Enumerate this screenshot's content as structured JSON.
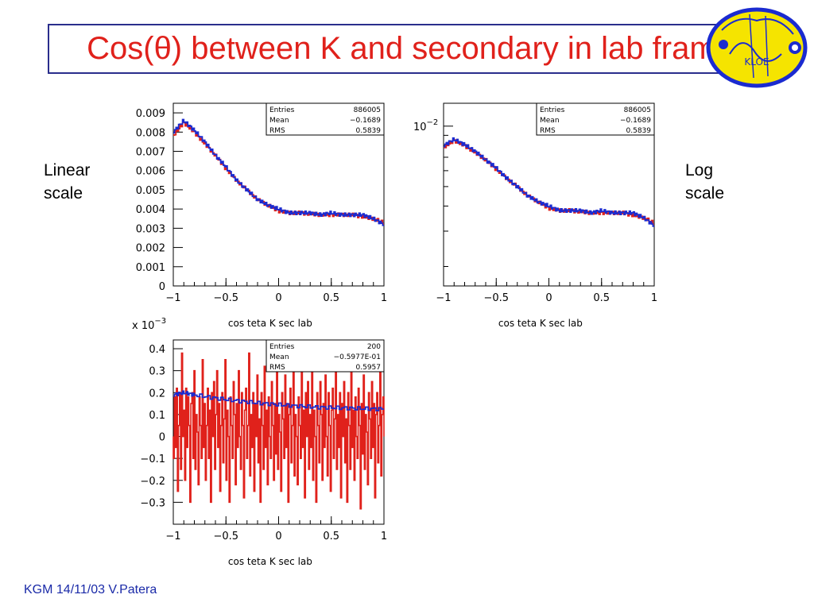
{
  "title": "Cos(θ) between K and secondary in lab frame",
  "left_label": [
    "Linear",
    "scale"
  ],
  "right_label": [
    "Log",
    "scale"
  ],
  "footer": "KGM 14/11/03 V.Patera",
  "logo": {
    "text": "KLOE",
    "icon": "kloe-logo"
  },
  "colors": {
    "title": "#e0211b",
    "red": "#e0211b",
    "blue": "#1b2bd0",
    "footer": "#1a2aa8"
  },
  "chart_data": [
    {
      "type": "histogram",
      "scale": "linear",
      "xlabel": "cos teta K sec lab",
      "xlim": [
        -1,
        1
      ],
      "ylim": [
        0,
        0.0095
      ],
      "xticks": [
        "-1",
        "-0.5",
        "0",
        "0.5",
        "1"
      ],
      "yticks": [
        "0",
        "0.001",
        "0.002",
        "0.003",
        "0.004",
        "0.005",
        "0.006",
        "0.007",
        "0.008",
        "0.009"
      ],
      "stats": [
        [
          "Entries",
          "886005"
        ],
        [
          "Mean",
          "-0.1689"
        ],
        [
          "RMS",
          "0.5839"
        ]
      ],
      "series": [
        {
          "color": "#e0211b",
          "x": [
            -1,
            -0.9,
            -0.8,
            -0.7,
            -0.6,
            -0.5,
            -0.4,
            -0.3,
            -0.2,
            -0.1,
            0,
            0.1,
            0.2,
            0.3,
            0.4,
            0.5,
            0.6,
            0.7,
            0.8,
            0.9,
            1
          ],
          "y": [
            0.0078,
            0.0085,
            0.008,
            0.0074,
            0.0068,
            0.0061,
            0.0055,
            0.005,
            0.0045,
            0.0042,
            0.0039,
            0.0038,
            0.0038,
            0.00375,
            0.0037,
            0.0037,
            0.0037,
            0.0037,
            0.0036,
            0.0035,
            0.0033
          ]
        },
        {
          "color": "#1b2bd0",
          "x": [
            -1,
            -0.9,
            -0.8,
            -0.7,
            -0.6,
            -0.5,
            -0.4,
            -0.3,
            -0.2,
            -0.1,
            0,
            0.1,
            0.2,
            0.3,
            0.4,
            0.5,
            0.6,
            0.7,
            0.8,
            0.9,
            1
          ],
          "y": [
            0.008,
            0.0086,
            0.0081,
            0.0075,
            0.0068,
            0.0062,
            0.0055,
            0.005,
            0.0045,
            0.0042,
            0.004,
            0.0038,
            0.0038,
            0.0038,
            0.0037,
            0.0038,
            0.0037,
            0.0037,
            0.0037,
            0.0035,
            0.0032
          ]
        }
      ]
    },
    {
      "type": "histogram",
      "scale": "log",
      "xlabel": "cos teta K sec lab",
      "xlim": [
        -1,
        1
      ],
      "ylim": [
        0.0016,
        0.013
      ],
      "xticks": [
        "-1",
        "-0.5",
        "0",
        "0.5",
        "1"
      ],
      "yticks": [
        "10^-2"
      ],
      "stats": [
        [
          "Entries",
          "886005"
        ],
        [
          "Mean",
          "-0.1689"
        ],
        [
          "RMS",
          "0.5839"
        ]
      ],
      "series": [
        {
          "color": "#e0211b",
          "x": [
            -1,
            -0.9,
            -0.8,
            -0.7,
            -0.6,
            -0.5,
            -0.4,
            -0.3,
            -0.2,
            -0.1,
            0,
            0.1,
            0.2,
            0.3,
            0.4,
            0.5,
            0.6,
            0.7,
            0.8,
            0.9,
            1
          ],
          "y": [
            0.0078,
            0.0085,
            0.008,
            0.0074,
            0.0068,
            0.0061,
            0.0055,
            0.005,
            0.0045,
            0.0042,
            0.0039,
            0.0038,
            0.0038,
            0.00375,
            0.0037,
            0.0037,
            0.0037,
            0.0037,
            0.0036,
            0.0035,
            0.0033
          ]
        },
        {
          "color": "#1b2bd0",
          "x": [
            -1,
            -0.9,
            -0.8,
            -0.7,
            -0.6,
            -0.5,
            -0.4,
            -0.3,
            -0.2,
            -0.1,
            0,
            0.1,
            0.2,
            0.3,
            0.4,
            0.5,
            0.6,
            0.7,
            0.8,
            0.9,
            1
          ],
          "y": [
            0.008,
            0.0086,
            0.0081,
            0.0075,
            0.0068,
            0.0062,
            0.0055,
            0.005,
            0.0045,
            0.0042,
            0.004,
            0.0038,
            0.0038,
            0.0038,
            0.0037,
            0.0038,
            0.0037,
            0.0037,
            0.0037,
            0.0035,
            0.0032
          ]
        }
      ]
    },
    {
      "type": "histogram",
      "scale": "linear",
      "xlabel": "cos teta K sec lab",
      "yexponent": "x 10^-3",
      "xlim": [
        -1,
        1
      ],
      "ylim": [
        -0.4,
        0.44
      ],
      "xticks": [
        "-1",
        "-0.5",
        "0",
        "0.5",
        "1"
      ],
      "yticks": [
        "-0.3",
        "-0.2",
        "-0.1",
        "0",
        "0.1",
        "0.2",
        "0.3",
        "0.4"
      ],
      "stats": [
        [
          "Entries",
          "200"
        ],
        [
          "Mean",
          "-0.5977E-01"
        ],
        [
          "RMS",
          "0.5957"
        ]
      ],
      "series": [
        {
          "color": "#e0211b",
          "bins": 200,
          "y": [
            -0.1,
            0.18,
            -0.05,
            0.22,
            -0.25,
            0.05,
            0.2,
            -0.15,
            0.38,
            0.0,
            0.12,
            -0.2,
            0.22,
            -0.05,
            0.18,
            0.05,
            -0.3,
            0.15,
            0.2,
            -0.1,
            0.3,
            -0.15,
            0.1,
            0.02,
            -0.22,
            0.18,
            0.05,
            -0.1,
            0.35,
            -0.05,
            0.15,
            -0.2,
            0.05,
            0.22,
            -0.1,
            0.12,
            -0.3,
            0.2,
            0.0,
            0.25,
            -0.15,
            0.1,
            0.3,
            -0.05,
            0.15,
            -0.25,
            0.05,
            0.2,
            -0.12,
            0.08,
            0.35,
            -0.2,
            0.12,
            0.0,
            -0.3,
            0.18,
            0.05,
            -0.1,
            0.25,
            0.1,
            -0.22,
            0.15,
            -0.05,
            0.3,
            0.0,
            -0.15,
            0.2,
            0.05,
            -0.28,
            0.12,
            0.22,
            -0.1,
            0.05,
            0.38,
            -0.18,
            0.1,
            -0.05,
            0.2,
            -0.25,
            0.15,
            0.0,
            0.28,
            -0.12,
            0.08,
            -0.3,
            0.2,
            0.05,
            -0.15,
            0.32,
            -0.05,
            0.12,
            -0.22,
            0.18,
            0.0,
            -0.1,
            0.25,
            0.05,
            -0.2,
            0.15,
            -0.08,
            0.3,
            -0.15,
            0.1,
            0.02,
            -0.25,
            0.2,
            0.08,
            -0.1,
            0.28,
            -0.05,
            0.15,
            -0.3,
            0.1,
            0.22,
            -0.12,
            0.05,
            0.35,
            -0.18,
            0.1,
            0.0,
            -0.22,
            0.18,
            0.05,
            -0.1,
            0.3,
            -0.05,
            0.12,
            -0.28,
            0.2,
            0.0,
            0.25,
            -0.15,
            0.1,
            -0.05,
            0.32,
            -0.2,
            0.12,
            0.0,
            -0.3,
            0.2,
            0.05,
            -0.12,
            0.25,
            0.1,
            -0.2,
            0.15,
            -0.05,
            0.28,
            0.0,
            -0.18,
            0.2,
            0.05,
            -0.25,
            0.12,
            0.22,
            -0.1,
            0.08,
            0.3,
            -0.15,
            0.1,
            -0.05,
            0.2,
            -0.28,
            0.15,
            0.0,
            0.25,
            -0.12,
            0.08,
            -0.3,
            0.2,
            0.05,
            -0.15,
            0.3,
            -0.05,
            0.12,
            -0.2,
            0.18,
            0.0,
            -0.1,
            0.22,
            0.05,
            -0.33,
            0.15,
            -0.08,
            0.28,
            -0.15,
            0.1,
            0.02,
            -0.22,
            0.2,
            0.08,
            -0.1,
            0.25,
            -0.05,
            0.15,
            -0.28,
            0.1,
            0.2,
            -0.12,
            0.05,
            0.3,
            -0.18,
            0.1,
            0.18
          ]
        },
        {
          "color": "#1b2bd0",
          "x": [
            -1,
            -0.9,
            -0.8,
            -0.6,
            -0.4,
            -0.2,
            0,
            0.2,
            0.4,
            0.6,
            0.8,
            1
          ],
          "y": [
            0.19,
            0.2,
            0.19,
            0.175,
            0.163,
            0.153,
            0.145,
            0.138,
            0.133,
            0.13,
            0.127,
            0.125
          ]
        }
      ]
    }
  ]
}
